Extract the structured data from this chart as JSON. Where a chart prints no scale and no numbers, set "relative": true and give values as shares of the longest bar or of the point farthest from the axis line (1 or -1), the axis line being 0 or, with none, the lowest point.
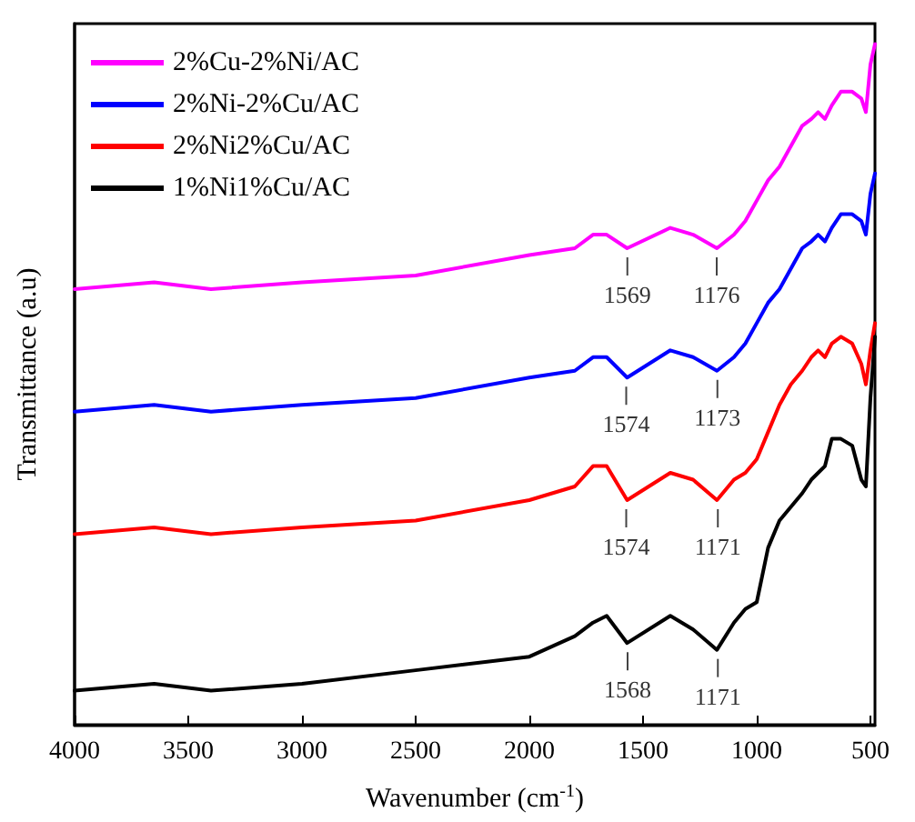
{
  "chart_data": {
    "type": "line",
    "relative": true,
    "xlabel": "Wavenumber (cm$^{-1}$)",
    "ylabel": "Transmittance (a.u)",
    "x": [
      4000,
      3650,
      3400,
      3000,
      2500,
      2000,
      1800,
      1720,
      1660,
      1570,
      1380,
      1280,
      1175,
      1100,
      1050,
      1000,
      950,
      900,
      850,
      800,
      760,
      730,
      700,
      670,
      630,
      580,
      540,
      520,
      500,
      480
    ],
    "xlim": [
      4000,
      480
    ],
    "xticks": [
      4000,
      3500,
      3000,
      2500,
      2000,
      1500,
      1000,
      500
    ],
    "series": [
      {
        "name": "2%Cu-2%Ni/AC",
        "color": "#ff00ff",
        "values": [
          0.64,
          0.65,
          0.64,
          0.65,
          0.66,
          0.69,
          0.7,
          0.72,
          0.72,
          0.7,
          0.73,
          0.72,
          0.7,
          0.72,
          0.74,
          0.77,
          0.8,
          0.82,
          0.85,
          0.88,
          0.89,
          0.9,
          0.89,
          0.91,
          0.93,
          0.93,
          0.92,
          0.9,
          0.97,
          1.0
        ]
      },
      {
        "name": "2%Ni-2%Cu/AC",
        "color": "#0000ff",
        "values": [
          0.46,
          0.47,
          0.46,
          0.47,
          0.48,
          0.51,
          0.52,
          0.54,
          0.54,
          0.51,
          0.55,
          0.54,
          0.52,
          0.54,
          0.56,
          0.59,
          0.62,
          0.64,
          0.67,
          0.7,
          0.71,
          0.72,
          0.71,
          0.73,
          0.75,
          0.75,
          0.74,
          0.72,
          0.78,
          0.81
        ]
      },
      {
        "name": "2%Ni2%Cu/AC",
        "color": "#ff0000",
        "values": [
          0.28,
          0.29,
          0.28,
          0.29,
          0.3,
          0.33,
          0.35,
          0.38,
          0.38,
          0.33,
          0.37,
          0.36,
          0.33,
          0.36,
          0.37,
          0.39,
          0.43,
          0.47,
          0.5,
          0.52,
          0.54,
          0.55,
          0.54,
          0.56,
          0.57,
          0.56,
          0.53,
          0.5,
          0.55,
          0.59
        ]
      },
      {
        "name": "1%Ni1%Cu/AC",
        "color": "#000000",
        "values": [
          0.05,
          0.06,
          0.05,
          0.06,
          0.08,
          0.1,
          0.13,
          0.15,
          0.16,
          0.12,
          0.16,
          0.14,
          0.11,
          0.15,
          0.17,
          0.18,
          0.26,
          0.3,
          0.32,
          0.34,
          0.36,
          0.37,
          0.38,
          0.42,
          0.42,
          0.41,
          0.36,
          0.35,
          0.48,
          0.57
        ]
      }
    ],
    "annotations": [
      {
        "text": "1569",
        "x": 1569,
        "y": 0.7
      },
      {
        "text": "1176",
        "x": 1176,
        "y": 0.7
      },
      {
        "text": "1574",
        "x": 1574,
        "y": 0.51
      },
      {
        "text": "1173",
        "x": 1173,
        "y": 0.52
      },
      {
        "text": "1574",
        "x": 1574,
        "y": 0.33
      },
      {
        "text": "1171",
        "x": 1171,
        "y": 0.33
      },
      {
        "text": "1568",
        "x": 1568,
        "y": 0.12
      },
      {
        "text": "1171",
        "x": 1171,
        "y": 0.11
      }
    ],
    "legend": "top left",
    "grid": false,
    "marker": "none",
    "line_style": "solid"
  }
}
